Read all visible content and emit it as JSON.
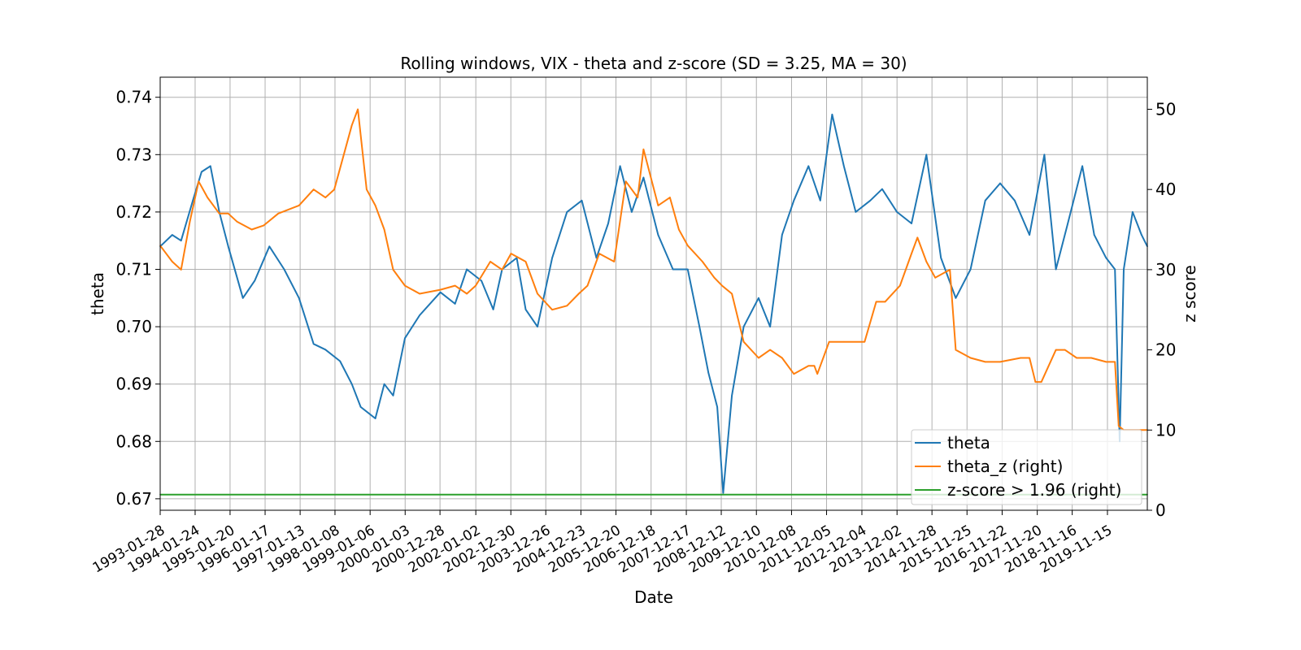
{
  "chart_data": {
    "type": "line",
    "title": "Rolling windows, VIX - theta and z-score (SD = 3.25, MA = 30)",
    "xlabel": "Date",
    "ylabel": "theta",
    "y2label": "z score",
    "grid": true,
    "legend_position": "lower-right",
    "x_range": [
      "1993-01-28",
      "2020-12-31"
    ],
    "ylim": [
      0.668,
      0.7435
    ],
    "y2lim": [
      0,
      54
    ],
    "x_ticks": [
      "1993-01-28",
      "1994-01-24",
      "1995-01-20",
      "1996-01-17",
      "1997-01-13",
      "1998-01-08",
      "1999-01-06",
      "2000-01-03",
      "2000-12-28",
      "2002-01-02",
      "2002-12-30",
      "2003-12-26",
      "2004-12-23",
      "2005-12-20",
      "2006-12-18",
      "2007-12-17",
      "2008-12-12",
      "2009-12-10",
      "2010-12-08",
      "2011-12-05",
      "2012-12-04",
      "2013-12-02",
      "2014-11-28",
      "2015-11-25",
      "2016-11-22",
      "2017-11-20",
      "2018-11-16",
      "2019-11-15"
    ],
    "y_ticks": [
      0.67,
      0.68,
      0.69,
      0.7,
      0.71,
      0.72,
      0.73,
      0.74
    ],
    "y_tick_labels": [
      "0.67",
      "0.68",
      "0.69",
      "0.70",
      "0.71",
      "0.72",
      "0.73",
      "0.74"
    ],
    "y2_ticks": [
      0,
      10,
      20,
      30,
      40,
      50
    ],
    "y2_tick_labels": [
      "0",
      "10",
      "20",
      "30",
      "40",
      "50"
    ],
    "series": [
      {
        "name": "theta",
        "axis": "left",
        "color": "#1f77b4",
        "x": [
          "1993-01-28",
          "1993-06-01",
          "1993-09-01",
          "1994-01-01",
          "1994-04-01",
          "1994-07-01",
          "1994-10-01",
          "1995-01-01",
          "1995-06-01",
          "1995-10-01",
          "1996-03-01",
          "1996-08-01",
          "1997-01-01",
          "1997-06-01",
          "1997-10-01",
          "1998-03-01",
          "1998-07-01",
          "1998-10-01",
          "1999-03-01",
          "1999-06-01",
          "1999-09-01",
          "2000-01-01",
          "2000-06-01",
          "2001-01-01",
          "2001-06-01",
          "2001-10-01",
          "2002-03-01",
          "2002-07-01",
          "2002-10-01",
          "2003-03-01",
          "2003-06-01",
          "2003-10-01",
          "2004-03-01",
          "2004-08-01",
          "2005-01-01",
          "2005-06-01",
          "2005-10-01",
          "2006-02-01",
          "2006-06-01",
          "2006-10-01",
          "2007-03-01",
          "2007-08-01",
          "2008-01-01",
          "2008-05-01",
          "2008-08-01",
          "2008-11-01",
          "2009-01-01",
          "2009-04-01",
          "2009-08-01",
          "2010-01-01",
          "2010-05-01",
          "2010-09-01",
          "2011-01-01",
          "2011-06-01",
          "2011-10-01",
          "2012-02-01",
          "2012-06-01",
          "2012-10-01",
          "2013-03-01",
          "2013-07-01",
          "2013-12-01",
          "2014-05-01",
          "2014-10-01",
          "2015-03-01",
          "2015-08-01",
          "2016-01-01",
          "2016-06-01",
          "2016-11-01",
          "2017-04-01",
          "2017-09-01",
          "2018-02-01",
          "2018-06-01",
          "2018-10-01",
          "2019-03-01",
          "2019-07-01",
          "2019-11-01",
          "2020-02-01",
          "2020-03-20",
          "2020-05-01",
          "2020-08-01",
          "2020-11-01",
          "2020-12-31"
        ],
        "values": [
          0.714,
          0.716,
          0.715,
          0.722,
          0.727,
          0.728,
          0.72,
          0.714,
          0.705,
          0.708,
          0.714,
          0.71,
          0.705,
          0.697,
          0.696,
          0.694,
          0.69,
          0.686,
          0.684,
          0.69,
          0.688,
          0.698,
          0.702,
          0.706,
          0.704,
          0.71,
          0.708,
          0.703,
          0.71,
          0.712,
          0.703,
          0.7,
          0.712,
          0.72,
          0.722,
          0.712,
          0.718,
          0.728,
          0.72,
          0.726,
          0.716,
          0.71,
          0.71,
          0.7,
          0.692,
          0.686,
          0.671,
          0.688,
          0.7,
          0.705,
          0.7,
          0.716,
          0.722,
          0.728,
          0.722,
          0.737,
          0.728,
          0.72,
          0.722,
          0.724,
          0.72,
          0.718,
          0.73,
          0.712,
          0.705,
          0.71,
          0.722,
          0.725,
          0.722,
          0.716,
          0.73,
          0.71,
          0.718,
          0.728,
          0.716,
          0.712,
          0.71,
          0.68,
          0.71,
          0.72,
          0.716,
          0.714
        ]
      },
      {
        "name": "theta_z (right)",
        "axis": "right",
        "color": "#ff7f0e",
        "x": [
          "1993-01-28",
          "1993-06-01",
          "1993-09-01",
          "1993-12-01",
          "1994-03-01",
          "1994-06-01",
          "1994-10-01",
          "1995-01-01",
          "1995-04-01",
          "1995-09-01",
          "1996-01-01",
          "1996-06-01",
          "1997-01-01",
          "1997-06-01",
          "1997-10-01",
          "1998-01-01",
          "1998-04-01",
          "1998-07-01",
          "1998-09-01",
          "1998-12-01",
          "1999-03-01",
          "1999-06-01",
          "1999-09-01",
          "2000-01-01",
          "2000-06-01",
          "2001-01-01",
          "2001-06-01",
          "2001-10-01",
          "2002-01-01",
          "2002-06-01",
          "2002-10-01",
          "2003-01-01",
          "2003-06-01",
          "2003-10-01",
          "2004-03-01",
          "2004-08-01",
          "2004-12-01",
          "2005-03-01",
          "2005-07-01",
          "2005-12-01",
          "2006-04-01",
          "2006-08-01",
          "2006-10-01",
          "2007-03-01",
          "2007-07-01",
          "2007-10-01",
          "2008-01-01",
          "2008-06-01",
          "2008-10-01",
          "2008-12-20",
          "2009-04-01",
          "2009-08-01",
          "2010-01-01",
          "2010-05-01",
          "2010-09-01",
          "2011-01-01",
          "2011-06-01",
          "2011-08-01",
          "2011-09-01",
          "2012-01-01",
          "2012-06-01",
          "2013-01-01",
          "2013-05-01",
          "2013-08-01",
          "2014-01-01",
          "2014-05-01",
          "2014-07-01",
          "2014-10-01",
          "2015-01-01",
          "2015-06-01",
          "2015-08-01",
          "2016-01-01",
          "2016-06-01",
          "2016-11-01",
          "2017-06-01",
          "2017-09-01",
          "2017-11-01",
          "2018-01-01",
          "2018-06-01",
          "2018-09-01",
          "2019-01-01",
          "2019-06-01",
          "2019-11-01",
          "2020-02-01",
          "2020-03-10",
          "2020-05-01",
          "2020-09-01",
          "2020-12-31"
        ],
        "values": [
          33,
          31,
          30,
          36,
          41,
          39,
          37,
          37,
          36,
          35,
          35.5,
          37,
          38,
          40,
          39,
          40,
          44,
          48,
          50,
          40,
          38,
          35,
          30,
          28,
          27,
          27.5,
          28,
          27,
          28,
          31,
          30,
          32,
          31,
          27,
          25,
          25.5,
          27,
          28,
          32,
          31,
          41,
          39,
          45,
          38,
          39,
          35,
          33,
          31,
          29,
          28,
          27,
          21,
          19,
          20,
          19,
          17,
          18,
          18,
          17,
          21,
          21,
          21,
          26,
          26,
          28,
          32,
          34,
          31,
          29,
          30,
          20,
          19,
          18.5,
          18.5,
          19,
          19,
          16,
          16,
          20,
          20,
          19,
          19,
          18.5,
          18.5,
          10.5,
          10,
          10,
          10
        ]
      },
      {
        "name": "z-score > 1.96 (right)",
        "axis": "right",
        "color": "#2ca02c",
        "x": [
          "1993-01-28",
          "2020-12-31"
        ],
        "values": [
          1.96,
          1.96
        ]
      }
    ]
  }
}
